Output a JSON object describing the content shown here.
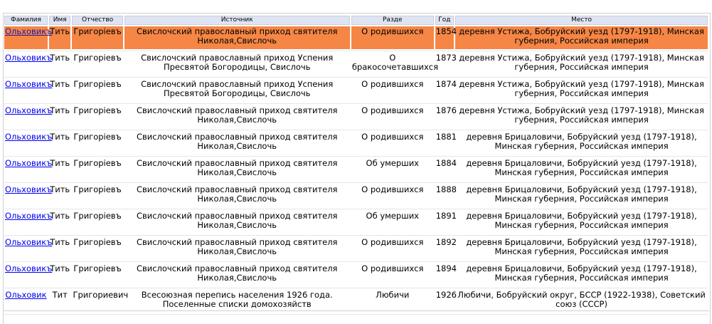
{
  "table": {
    "headers": {
      "surname": "Фамилия",
      "name": "Имя",
      "patronymic": "Отчество",
      "source": "Источник",
      "section": "Разде",
      "year": "Год",
      "place": "Место"
    },
    "rows": [
      {
        "surname": "Ольховикъ",
        "name": "Тить",
        "patronymic": "Григоріевъ",
        "source": "Свислочский православный приход святителя Николая,Свислочь",
        "section": "О родившихся",
        "year": "1854",
        "place": "деревня Устижа, Бобруйский уезд (1797-1918), Минская губерния, Российская империя",
        "highlighted": true
      },
      {
        "surname": "Ольховикъ",
        "name": "Тить",
        "patronymic": "Григоріевъ",
        "source": "Свислочский православный приход Успения Пресвятой Богородицы, Свислочь",
        "section": "О бракосочетавшихся",
        "year": "1873",
        "place": "деревня Устижа, Бобруйский уезд (1797-1918), Минская губерния, Российская империя"
      },
      {
        "surname": "Ольховикъ",
        "name": "Тить",
        "patronymic": "Григоріевъ",
        "source": "Свислочский православный приход Успения Пресвятой Богородицы, Свислочь",
        "section": "О родившихся",
        "year": "1874",
        "place": "деревня Устижа, Бобруйский уезд (1797-1918), Минская губерния, Российская империя"
      },
      {
        "surname": "Ольховикъ",
        "name": "Тить",
        "patronymic": "Григоріевъ",
        "source": "Свислочский православный приход святителя Николая,Свислочь",
        "section": "О родившихся",
        "year": "1876",
        "place": "деревня Устижа, Бобруйский уезд (1797-1918), Минская губерния, Российская империя"
      },
      {
        "surname": "Ольховикъ",
        "name": "Тить",
        "patronymic": "Григоріевъ",
        "source": "Свислочский православный приход святителя Николая,Свислочь",
        "section": "О родившихся",
        "year": "1881",
        "place": "деревня Брицаловичи, Бобруйский уезд (1797-1918), Минская губерния, Российская империя"
      },
      {
        "surname": "Ольховикъ",
        "name": "Тить",
        "patronymic": "Григоріевъ",
        "source": "Свислочский православный приход святителя Николая,Свислочь",
        "section": "Об умерших",
        "year": "1884",
        "place": "деревня Брицаловичи, Бобруйский уезд (1797-1918), Минская губерния, Российская империя"
      },
      {
        "surname": "Ольховикъ",
        "name": "Тить",
        "patronymic": "Григоріевъ",
        "source": "Свислочский православный приход святителя Николая,Свислочь",
        "section": "О родившихся",
        "year": "1888",
        "place": "деревня Брицаловичи, Бобруйский уезд (1797-1918), Минская губерния, Российская империя"
      },
      {
        "surname": "Ольховикъ",
        "name": "Тить",
        "patronymic": "Григоріевъ",
        "source": "Свислочский православный приход святителя Николая,Свислочь",
        "section": "Об умерших",
        "year": "1891",
        "place": "деревня Брицаловичи, Бобруйский уезд (1797-1918), Минская губерния, Российская империя"
      },
      {
        "surname": "Ольховикъ",
        "name": "Тить",
        "patronymic": "Григоріевъ",
        "source": "Свислочский православный приход святителя Николая,Свислочь",
        "section": "О родившихся",
        "year": "1892",
        "place": "деревня Брицаловичи, Бобруйский уезд (1797-1918), Минская губерния, Российская империя"
      },
      {
        "surname": "Ольховикъ",
        "name": "Тить",
        "patronymic": "Григоріевъ",
        "source": "Свислочский православный приход святителя Николая,Свислочь",
        "section": "О родившихся",
        "year": "1894",
        "place": "деревня Брицаловичи, Бобруйский уезд (1797-1918), Минская губерния, Российская империя"
      },
      {
        "surname": "Ольховик",
        "name": "Тит",
        "patronymic": "Григориевич",
        "source": "Всесоюзная перепись населения 1926 года. Поселенные списки домохозяйств",
        "section": "Любичи",
        "year": "1926",
        "place": "Любичи, Бобруйский округ, БССР (1922-1938), Советский союз (СССР)"
      }
    ]
  },
  "colors": {
    "header_bg": "#dfe4f3",
    "highlight_row": "#f58646",
    "link": "#0000ee"
  }
}
